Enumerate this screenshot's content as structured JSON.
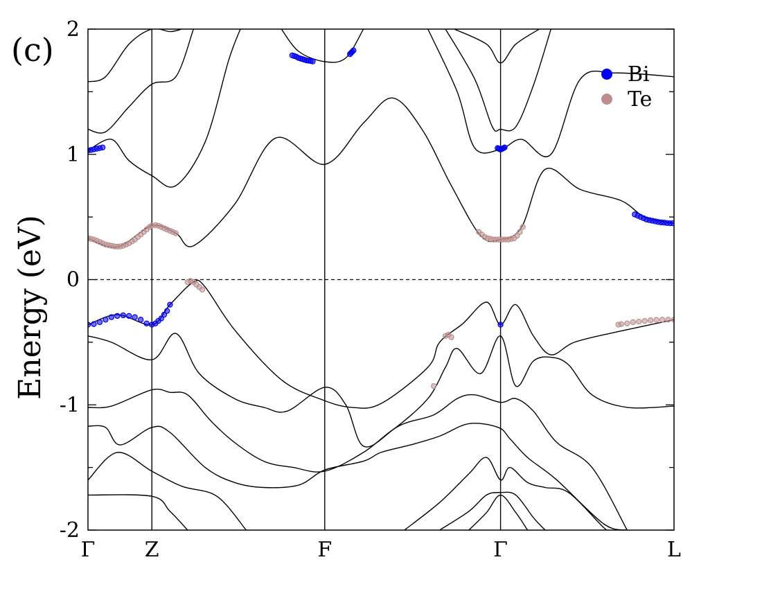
{
  "panel_label": "(c)",
  "chart_data": {
    "type": "line",
    "ylabel": "Energy (eV)",
    "ylim": [
      -2,
      2
    ],
    "yticks": [
      -2,
      -1,
      0,
      1,
      2
    ],
    "ytick_labels": [
      "-2",
      "-1",
      "0",
      "1",
      "2"
    ],
    "xlim": [
      0,
      1
    ],
    "kpoints": [
      {
        "label": "Γ",
        "x": 0.0
      },
      {
        "label": "Z",
        "x": 0.109
      },
      {
        "label": "F",
        "x": 0.404
      },
      {
        "label": "Γ",
        "x": 0.704
      },
      {
        "label": "L",
        "x": 1.0
      }
    ],
    "fermi_level": 0,
    "legend": [
      {
        "label": "Bi",
        "color": "#0000ee"
      },
      {
        "label": "Te",
        "color": "#bc8f8f"
      }
    ],
    "band_color": "#000000",
    "bands": [
      [
        [
          0,
          -1.72
        ],
        [
          0.109,
          -1.73
        ],
        [
          0.14,
          -1.85
        ],
        [
          0.17,
          -2.0
        ]
      ],
      [
        [
          0,
          -1.6
        ],
        [
          0.05,
          -1.38
        ],
        [
          0.109,
          -1.53
        ],
        [
          0.16,
          -1.65
        ],
        [
          0.22,
          -1.73
        ],
        [
          0.27,
          -2.0
        ]
      ],
      [
        [
          0,
          -1.17
        ],
        [
          0.03,
          -1.18
        ],
        [
          0.055,
          -1.32
        ],
        [
          0.109,
          -1.18
        ],
        [
          0.14,
          -1.22
        ],
        [
          0.2,
          -1.5
        ],
        [
          0.25,
          -1.62
        ],
        [
          0.3,
          -1.66
        ],
        [
          0.36,
          -1.64
        ],
        [
          0.404,
          -1.52
        ],
        [
          0.47,
          -1.45
        ],
        [
          0.5,
          -1.38
        ],
        [
          0.55,
          -1.32
        ],
        [
          0.6,
          -1.25
        ],
        [
          0.65,
          -1.15
        ],
        [
          0.7,
          -1.18
        ],
        [
          0.72,
          -1.27
        ],
        [
          0.75,
          -1.42
        ],
        [
          0.8,
          -1.6
        ],
        [
          0.88,
          -1.95
        ],
        [
          0.92,
          -2.0
        ]
      ],
      [
        [
          0,
          -1.02
        ],
        [
          0.04,
          -1.01
        ],
        [
          0.109,
          -0.88
        ],
        [
          0.14,
          -0.9
        ],
        [
          0.17,
          -0.92
        ],
        [
          0.21,
          -1.13
        ],
        [
          0.25,
          -1.3
        ],
        [
          0.3,
          -1.45
        ],
        [
          0.35,
          -1.5
        ],
        [
          0.404,
          -1.53
        ],
        [
          0.47,
          -1.38
        ],
        [
          0.53,
          -1.17
        ],
        [
          0.59,
          -1.08
        ],
        [
          0.63,
          -0.95
        ],
        [
          0.66,
          -0.92
        ],
        [
          0.704,
          -0.98
        ],
        [
          0.73,
          -0.95
        ],
        [
          0.76,
          -1.05
        ],
        [
          0.8,
          -1.3
        ],
        [
          0.86,
          -1.5
        ],
        [
          0.92,
          -2.0
        ]
      ],
      [
        [
          0,
          -0.45
        ],
        [
          0.04,
          -0.5
        ],
        [
          0.109,
          -0.64
        ],
        [
          0.15,
          -0.43
        ],
        [
          0.19,
          -0.75
        ],
        [
          0.25,
          -0.95
        ],
        [
          0.3,
          -1.02
        ],
        [
          0.34,
          -1.05
        ],
        [
          0.404,
          -0.86
        ],
        [
          0.44,
          -1.0
        ],
        [
          0.47,
          -1.33
        ],
        [
          0.52,
          -1.2
        ],
        [
          0.58,
          -0.95
        ],
        [
          0.61,
          -0.7
        ],
        [
          0.63,
          -0.55
        ],
        [
          0.67,
          -0.75
        ],
        [
          0.704,
          -0.45
        ],
        [
          0.73,
          -0.85
        ],
        [
          0.76,
          -0.65
        ],
        [
          0.79,
          -0.62
        ],
        [
          0.82,
          -0.68
        ],
        [
          0.86,
          -0.92
        ],
        [
          0.92,
          -1.02
        ],
        [
          1.0,
          -1.01
        ]
      ],
      [
        [
          0,
          -0.36
        ],
        [
          0.05,
          -0.28
        ],
        [
          0.109,
          -0.36
        ],
        [
          0.14,
          -0.2
        ],
        [
          0.18,
          -0.02
        ],
        [
          0.2,
          -0.06
        ],
        [
          0.25,
          -0.4
        ],
        [
          0.33,
          -0.8
        ],
        [
          0.4,
          -0.96
        ],
        [
          0.45,
          -1.02
        ],
        [
          0.5,
          -0.99
        ],
        [
          0.58,
          -0.7
        ],
        [
          0.6,
          -0.5
        ],
        [
          0.64,
          -0.35
        ],
        [
          0.68,
          -0.18
        ],
        [
          0.704,
          -0.36
        ],
        [
          0.73,
          -0.2
        ],
        [
          0.76,
          -0.45
        ],
        [
          0.79,
          -0.6
        ],
        [
          0.83,
          -0.5
        ],
        [
          0.9,
          -0.42
        ],
        [
          1.0,
          -0.32
        ]
      ],
      [
        [
          0,
          0.33
        ],
        [
          0.05,
          0.26
        ],
        [
          0.109,
          0.43
        ],
        [
          0.15,
          0.37
        ],
        [
          0.18,
          0.27
        ],
        [
          0.25,
          0.6
        ],
        [
          0.32,
          1.13
        ],
        [
          0.404,
          0.92
        ],
        [
          0.47,
          1.25
        ],
        [
          0.52,
          1.45
        ],
        [
          0.57,
          1.2
        ],
        [
          0.62,
          0.75
        ],
        [
          0.67,
          0.35
        ],
        [
          0.704,
          0.32
        ],
        [
          0.74,
          0.42
        ],
        [
          0.78,
          0.88
        ],
        [
          0.84,
          0.72
        ],
        [
          0.91,
          0.63
        ],
        [
          0.95,
          0.5
        ],
        [
          1.0,
          0.45
        ]
      ],
      [
        [
          0,
          1.03
        ],
        [
          0.04,
          1.12
        ],
        [
          0.07,
          0.95
        ],
        [
          0.109,
          0.83
        ],
        [
          0.15,
          0.75
        ],
        [
          0.2,
          1.1
        ],
        [
          0.24,
          1.75
        ],
        [
          0.26,
          2.0
        ]
      ],
      [
        [
          0,
          1.2
        ],
        [
          0.03,
          1.18
        ],
        [
          0.07,
          1.38
        ],
        [
          0.109,
          1.56
        ],
        [
          0.15,
          1.62
        ],
        [
          0.18,
          2.0
        ]
      ],
      [
        [
          0,
          1.58
        ],
        [
          0.03,
          1.62
        ],
        [
          0.07,
          1.88
        ],
        [
          0.109,
          2.0
        ],
        [
          0.14,
          1.98
        ],
        [
          0.16,
          2.0
        ]
      ],
      [
        [
          0.33,
          2.0
        ],
        [
          0.36,
          1.82
        ],
        [
          0.404,
          1.74
        ],
        [
          0.44,
          1.77
        ],
        [
          0.47,
          2.0
        ]
      ],
      [
        [
          0.58,
          2.0
        ],
        [
          0.63,
          1.5
        ],
        [
          0.66,
          1.05
        ],
        [
          0.704,
          1.04
        ],
        [
          0.74,
          1.12
        ],
        [
          0.79,
          1.0
        ],
        [
          0.84,
          1.6
        ],
        [
          0.9,
          1.65
        ],
        [
          1.0,
          1.62
        ]
      ],
      [
        [
          0.61,
          2.0
        ],
        [
          0.66,
          1.6
        ],
        [
          0.69,
          1.22
        ],
        [
          0.704,
          1.2
        ],
        [
          0.73,
          1.22
        ],
        [
          0.76,
          1.55
        ],
        [
          0.79,
          2.0
        ]
      ],
      [
        [
          0.625,
          2.0
        ],
        [
          0.68,
          1.88
        ],
        [
          0.704,
          1.73
        ],
        [
          0.73,
          1.88
        ],
        [
          0.77,
          2.0
        ]
      ],
      [
        [
          0.54,
          -2.0
        ],
        [
          0.6,
          -1.78
        ],
        [
          0.65,
          -1.55
        ],
        [
          0.68,
          -1.42
        ],
        [
          0.704,
          -1.6
        ],
        [
          0.72,
          -1.5
        ],
        [
          0.75,
          -1.62
        ],
        [
          0.78,
          -1.66
        ],
        [
          0.82,
          -1.7
        ],
        [
          0.88,
          -1.98
        ],
        [
          0.89,
          -2.0
        ]
      ],
      [
        [
          0.6,
          -2.0
        ],
        [
          0.65,
          -1.85
        ],
        [
          0.68,
          -1.72
        ],
        [
          0.704,
          -1.7
        ],
        [
          0.73,
          -1.72
        ],
        [
          0.76,
          -1.9
        ],
        [
          0.78,
          -2.0
        ]
      ],
      [
        [
          0.65,
          -2.0
        ],
        [
          0.68,
          -1.86
        ],
        [
          0.704,
          -1.72
        ],
        [
          0.73,
          -1.86
        ],
        [
          0.75,
          -2.0
        ]
      ]
    ],
    "projections": [
      {
        "element": "Bi",
        "points": [
          [
            0,
            1.03
          ],
          [
            0.005,
            1.035
          ],
          [
            0.01,
            1.04
          ],
          [
            0.015,
            1.045
          ],
          [
            0.02,
            1.05
          ],
          [
            0.025,
            1.055
          ],
          [
            0.3485,
            1.79
          ],
          [
            0.352,
            1.785
          ],
          [
            0.3555,
            1.78
          ],
          [
            0.359,
            1.77
          ],
          [
            0.3625,
            1.765
          ],
          [
            0.366,
            1.76
          ],
          [
            0.3695,
            1.755
          ],
          [
            0.373,
            1.75
          ],
          [
            0.3765,
            1.748
          ],
          [
            0.38,
            1.745
          ],
          [
            0.3835,
            1.742
          ],
          [
            0.447,
            1.8
          ],
          [
            0.449,
            1.81
          ],
          [
            0.451,
            1.82
          ],
          [
            0.453,
            1.83
          ],
          [
            0.699,
            1.05
          ],
          [
            0.701,
            1.045
          ],
          [
            0.703,
            1.04
          ],
          [
            0.705,
            1.04
          ],
          [
            0.707,
            1.045
          ],
          [
            0.709,
            1.05
          ],
          [
            0.711,
            1.055
          ],
          [
            0.933,
            0.52
          ],
          [
            0.938,
            0.51
          ],
          [
            0.943,
            0.5
          ],
          [
            0.948,
            0.49
          ],
          [
            0.953,
            0.48
          ],
          [
            0.958,
            0.475
          ],
          [
            0.963,
            0.47
          ],
          [
            0.968,
            0.465
          ],
          [
            0.973,
            0.46
          ],
          [
            0.978,
            0.457
          ],
          [
            0.983,
            0.455
          ],
          [
            0.988,
            0.452
          ],
          [
            0.993,
            0.45
          ],
          [
            0.998,
            0.45
          ],
          [
            0,
            -0.36
          ],
          [
            0.01,
            -0.355
          ],
          [
            0.02,
            -0.34
          ],
          [
            0.03,
            -0.32
          ],
          [
            0.04,
            -0.3
          ],
          [
            0.05,
            -0.29
          ],
          [
            0.06,
            -0.285
          ],
          [
            0.07,
            -0.29
          ],
          [
            0.08,
            -0.3
          ],
          [
            0.09,
            -0.32
          ],
          [
            0.1,
            -0.35
          ],
          [
            0.109,
            -0.36
          ],
          [
            0.115,
            -0.35
          ],
          [
            0.12,
            -0.33
          ],
          [
            0.125,
            -0.31
          ],
          [
            0.13,
            -0.28
          ],
          [
            0.135,
            -0.25
          ],
          [
            0.14,
            -0.2
          ],
          [
            0.704,
            -0.36
          ]
        ]
      },
      {
        "element": "Te",
        "points": [
          [
            0,
            0.33
          ],
          [
            0.005,
            0.325
          ],
          [
            0.01,
            0.32
          ],
          [
            0.015,
            0.31
          ],
          [
            0.02,
            0.3
          ],
          [
            0.025,
            0.29
          ],
          [
            0.03,
            0.28
          ],
          [
            0.035,
            0.275
          ],
          [
            0.04,
            0.27
          ],
          [
            0.045,
            0.265
          ],
          [
            0.05,
            0.263
          ],
          [
            0.055,
            0.265
          ],
          [
            0.06,
            0.27
          ],
          [
            0.065,
            0.28
          ],
          [
            0.07,
            0.29
          ],
          [
            0.075,
            0.305
          ],
          [
            0.08,
            0.32
          ],
          [
            0.085,
            0.34
          ],
          [
            0.09,
            0.36
          ],
          [
            0.095,
            0.38
          ],
          [
            0.1,
            0.4
          ],
          [
            0.105,
            0.42
          ],
          [
            0.109,
            0.43
          ],
          [
            0.115,
            0.435
          ],
          [
            0.12,
            0.43
          ],
          [
            0.125,
            0.42
          ],
          [
            0.13,
            0.41
          ],
          [
            0.135,
            0.4
          ],
          [
            0.14,
            0.39
          ],
          [
            0.145,
            0.38
          ],
          [
            0.15,
            0.37
          ],
          [
            0.17,
            -0.02
          ],
          [
            0.175,
            -0.01
          ],
          [
            0.18,
            -0.02
          ],
          [
            0.185,
            -0.04
          ],
          [
            0.19,
            -0.06
          ],
          [
            0.195,
            -0.08
          ],
          [
            0.61,
            -0.45
          ],
          [
            0.615,
            -0.44
          ],
          [
            0.62,
            -0.46
          ],
          [
            0.59,
            -0.85
          ],
          [
            0.667,
            0.38
          ],
          [
            0.672,
            0.36
          ],
          [
            0.677,
            0.34
          ],
          [
            0.682,
            0.33
          ],
          [
            0.687,
            0.325
          ],
          [
            0.692,
            0.32
          ],
          [
            0.697,
            0.32
          ],
          [
            0.702,
            0.32
          ],
          [
            0.707,
            0.32
          ],
          [
            0.712,
            0.32
          ],
          [
            0.717,
            0.32
          ],
          [
            0.722,
            0.325
          ],
          [
            0.727,
            0.33
          ],
          [
            0.732,
            0.35
          ],
          [
            0.737,
            0.38
          ],
          [
            0.742,
            0.42
          ],
          [
            0.905,
            -0.36
          ],
          [
            0.91,
            -0.355
          ],
          [
            0.92,
            -0.35
          ],
          [
            0.93,
            -0.34
          ],
          [
            0.94,
            -0.335
          ],
          [
            0.95,
            -0.33
          ],
          [
            0.96,
            -0.325
          ],
          [
            0.97,
            -0.322
          ],
          [
            0.98,
            -0.32
          ],
          [
            0.99,
            -0.32
          ],
          [
            1.0,
            -0.32
          ]
        ]
      }
    ]
  }
}
